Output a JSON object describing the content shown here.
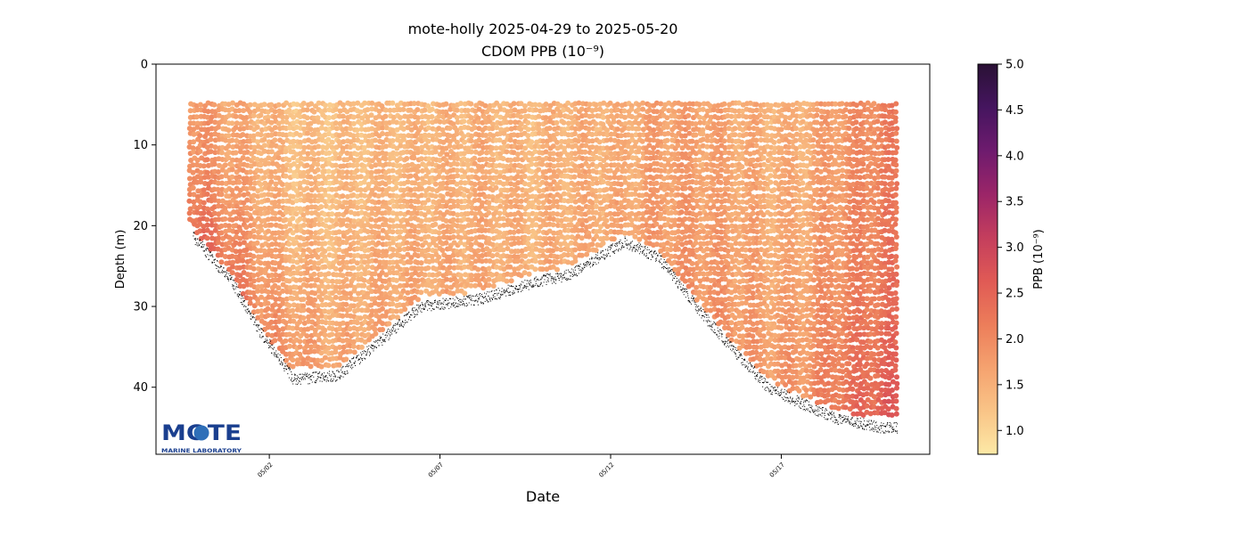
{
  "chart_data": {
    "type": "scatter",
    "title": "mote-holly 2025-04-29 to 2025-05-20",
    "subtitle": "CDOM PPB (10⁻⁹)",
    "xlabel": "Date",
    "ylabel": "Depth (m)",
    "x_units": "days since 2025-04-29",
    "xlim": [
      -0.32,
      22.35
    ],
    "ylim": [
      48.3,
      0
    ],
    "y_inverted": true,
    "x_ticks": [
      {
        "x": 3,
        "label": "05/02"
      },
      {
        "x": 8,
        "label": "05/07"
      },
      {
        "x": 13,
        "label": "05/12"
      },
      {
        "x": 18,
        "label": "05/17"
      }
    ],
    "y_ticks": [
      {
        "y": 0,
        "label": "0"
      },
      {
        "y": 10,
        "label": "10"
      },
      {
        "y": 20,
        "label": "20"
      },
      {
        "y": 30,
        "label": "30"
      },
      {
        "y": 40,
        "label": "40"
      }
    ],
    "colorbar": {
      "label": "PPB (10⁻⁹)",
      "range": [
        0.74,
        5.0
      ],
      "ticks": [
        "1.0",
        "1.5",
        "2.0",
        "2.5",
        "3.0",
        "3.5",
        "4.0",
        "4.5",
        "5.0"
      ],
      "colormap": [
        "#fde9a6",
        "#f9c487",
        "#f5a26f",
        "#ec7d5a",
        "#e05a55",
        "#c43e5d",
        "#9b2568",
        "#6e1b6e",
        "#45155f",
        "#2a1135"
      ]
    },
    "surface_depth_m": 5,
    "profile": {
      "x": [
        0.68,
        1.9,
        2.7,
        3.7,
        5.0,
        6.3,
        7.4,
        9.2,
        10.7,
        11.8,
        13.4,
        14.4,
        15.5,
        16.5,
        17.6,
        18.6,
        19.7,
        21.0,
        21.4
      ],
      "bottom_depth": [
        20,
        26,
        32,
        38,
        37.5,
        33,
        29,
        28,
        26,
        25,
        21,
        23,
        29,
        34,
        39,
        41,
        43,
        44,
        44
      ],
      "ppb_upper": [
        1.9,
        1.6,
        1.5,
        1.3,
        1.3,
        1.4,
        1.4,
        1.5,
        1.4,
        1.5,
        1.5,
        1.7,
        1.7,
        1.6,
        1.5,
        1.5,
        1.8,
        2.1,
        2.1
      ],
      "ppb_lower": [
        2.4,
        2.3,
        2.0,
        1.9,
        1.6,
        1.7,
        1.6,
        1.6,
        1.5,
        1.6,
        1.6,
        1.8,
        1.9,
        1.9,
        1.8,
        1.9,
        2.3,
        2.6,
        2.6
      ]
    },
    "logo": {
      "name": "MOTE",
      "subtitle": "MARINE LABORATORY",
      "color": "#1a3f8f"
    }
  }
}
